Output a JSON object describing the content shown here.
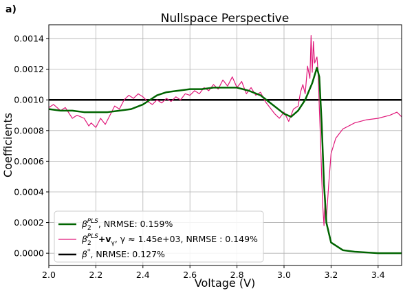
{
  "panel_label": "a)",
  "chart_data": {
    "type": "line",
    "title": "Nullspace Perspective",
    "xlabel": "Voltage (V)",
    "ylabel": "Coefficients",
    "xlim": [
      2.0,
      3.5
    ],
    "ylim": [
      -8e-05,
      0.00149
    ],
    "xticks": [
      2.0,
      2.2,
      2.4,
      2.6,
      2.8,
      3.0,
      3.2,
      3.4
    ],
    "xtick_labels": [
      "2.0",
      "2.2",
      "2.4",
      "2.6",
      "2.8",
      "3.0",
      "3.2",
      "3.4"
    ],
    "yticks": [
      0.0,
      0.0002,
      0.0004,
      0.0006,
      0.0008,
      0.001,
      0.0012,
      0.0014
    ],
    "ytick_labels": [
      "0.0000",
      "0.0002",
      "0.0004",
      "0.0006",
      "0.0008",
      "0.0010",
      "0.0012",
      "0.0014"
    ],
    "grid": true,
    "legend_placement": "lower-left",
    "series": [
      {
        "name": "β₂^PLS, NRMSE: 0.159%",
        "color": "#006400",
        "points": [
          [
            2.0,
            0.00094
          ],
          [
            2.05,
            0.00093
          ],
          [
            2.1,
            0.00093
          ],
          [
            2.15,
            0.00092
          ],
          [
            2.2,
            0.00092
          ],
          [
            2.25,
            0.00092
          ],
          [
            2.3,
            0.00093
          ],
          [
            2.35,
            0.00094
          ],
          [
            2.4,
            0.00097
          ],
          [
            2.43,
            0.001
          ],
          [
            2.46,
            0.00103
          ],
          [
            2.5,
            0.00105
          ],
          [
            2.55,
            0.00106
          ],
          [
            2.6,
            0.00107
          ],
          [
            2.65,
            0.00107
          ],
          [
            2.7,
            0.00108
          ],
          [
            2.75,
            0.00108
          ],
          [
            2.8,
            0.00108
          ],
          [
            2.85,
            0.00106
          ],
          [
            2.9,
            0.00103
          ],
          [
            2.95,
            0.00097
          ],
          [
            3.0,
            0.00091
          ],
          [
            3.03,
            0.00089
          ],
          [
            3.06,
            0.00093
          ],
          [
            3.09,
            0.001
          ],
          [
            3.12,
            0.00111
          ],
          [
            3.14,
            0.00121
          ],
          [
            3.15,
            0.00115
          ],
          [
            3.16,
            0.00085
          ],
          [
            3.17,
            0.00045
          ],
          [
            3.18,
            0.0002
          ],
          [
            3.2,
            7e-05
          ],
          [
            3.25,
            2e-05
          ],
          [
            3.3,
            1e-05
          ],
          [
            3.4,
            0.0
          ],
          [
            3.5,
            0.0
          ]
        ]
      },
      {
        "name": "β₂^PLS + v_γ, γ ≈ 1.45e+03, NRMSE: 0.149%",
        "color": "#e0187a",
        "points": [
          [
            2.0,
            0.00095
          ],
          [
            2.02,
            0.00097
          ],
          [
            2.05,
            0.00093
          ],
          [
            2.07,
            0.00095
          ],
          [
            2.1,
            0.00088
          ],
          [
            2.12,
            0.0009
          ],
          [
            2.15,
            0.00088
          ],
          [
            2.17,
            0.00083
          ],
          [
            2.18,
            0.00085
          ],
          [
            2.2,
            0.00082
          ],
          [
            2.22,
            0.00088
          ],
          [
            2.24,
            0.00084
          ],
          [
            2.26,
            0.0009
          ],
          [
            2.28,
            0.00096
          ],
          [
            2.3,
            0.00094
          ],
          [
            2.32,
            0.001
          ],
          [
            2.34,
            0.00103
          ],
          [
            2.36,
            0.00101
          ],
          [
            2.38,
            0.00104
          ],
          [
            2.4,
            0.00102
          ],
          [
            2.42,
            0.00099
          ],
          [
            2.44,
            0.00097
          ],
          [
            2.46,
            0.001
          ],
          [
            2.48,
            0.00098
          ],
          [
            2.5,
            0.00101
          ],
          [
            2.52,
            0.00099
          ],
          [
            2.54,
            0.00102
          ],
          [
            2.56,
            0.001
          ],
          [
            2.58,
            0.00104
          ],
          [
            2.6,
            0.00103
          ],
          [
            2.62,
            0.00106
          ],
          [
            2.64,
            0.00104
          ],
          [
            2.66,
            0.00108
          ],
          [
            2.68,
            0.00106
          ],
          [
            2.7,
            0.0011
          ],
          [
            2.72,
            0.00107
          ],
          [
            2.74,
            0.00113
          ],
          [
            2.76,
            0.00109
          ],
          [
            2.78,
            0.00115
          ],
          [
            2.8,
            0.00108
          ],
          [
            2.82,
            0.00112
          ],
          [
            2.84,
            0.00104
          ],
          [
            2.86,
            0.00108
          ],
          [
            2.88,
            0.00103
          ],
          [
            2.9,
            0.00105
          ],
          [
            2.92,
            0.00099
          ],
          [
            2.94,
            0.00095
          ],
          [
            2.96,
            0.00091
          ],
          [
            2.98,
            0.00088
          ],
          [
            3.0,
            0.00092
          ],
          [
            3.02,
            0.00086
          ],
          [
            3.04,
            0.00094
          ],
          [
            3.06,
            0.00096
          ],
          [
            3.07,
            0.00105
          ],
          [
            3.08,
            0.0011
          ],
          [
            3.09,
            0.00104
          ],
          [
            3.1,
            0.00122
          ],
          [
            3.11,
            0.00114
          ],
          [
            3.115,
            0.00142
          ],
          [
            3.12,
            0.00118
          ],
          [
            3.125,
            0.00138
          ],
          [
            3.13,
            0.00124
          ],
          [
            3.14,
            0.00128
          ],
          [
            3.145,
            0.00118
          ],
          [
            3.15,
            0.00095
          ],
          [
            3.155,
            0.00075
          ],
          [
            3.16,
            0.0005
          ],
          [
            3.165,
            0.0003
          ],
          [
            3.17,
            0.00018
          ],
          [
            3.175,
            0.00038
          ],
          [
            3.18,
            0.00022
          ],
          [
            3.19,
            0.00045
          ],
          [
            3.2,
            0.00065
          ],
          [
            3.22,
            0.00075
          ],
          [
            3.25,
            0.00081
          ],
          [
            3.3,
            0.00085
          ],
          [
            3.35,
            0.00087
          ],
          [
            3.4,
            0.00088
          ],
          [
            3.45,
            0.0009
          ],
          [
            3.48,
            0.00092
          ],
          [
            3.5,
            0.00089
          ]
        ]
      },
      {
        "name": "β*, NRMSE: 0.127%",
        "color": "#000000",
        "points": [
          [
            2.0,
            0.001
          ],
          [
            3.5,
            0.001
          ]
        ]
      }
    ]
  },
  "legend": [
    {
      "color": "#006400",
      "width": 2.5,
      "html_lines": [
        "β",
        "2",
        "PLS",
        ", NRMSE: 0.159%"
      ]
    },
    {
      "color": "#e0187a",
      "width": 1.2,
      "html_lines": [
        "β",
        "2",
        "PLS",
        "+v",
        "γ",
        ", γ ≈ 1.45e+03, NRMSE : 0.149%"
      ]
    },
    {
      "color": "#000000",
      "width": 2.5,
      "html_lines": [
        "β",
        "*",
        ", NRMSE: 0.127%"
      ]
    }
  ]
}
